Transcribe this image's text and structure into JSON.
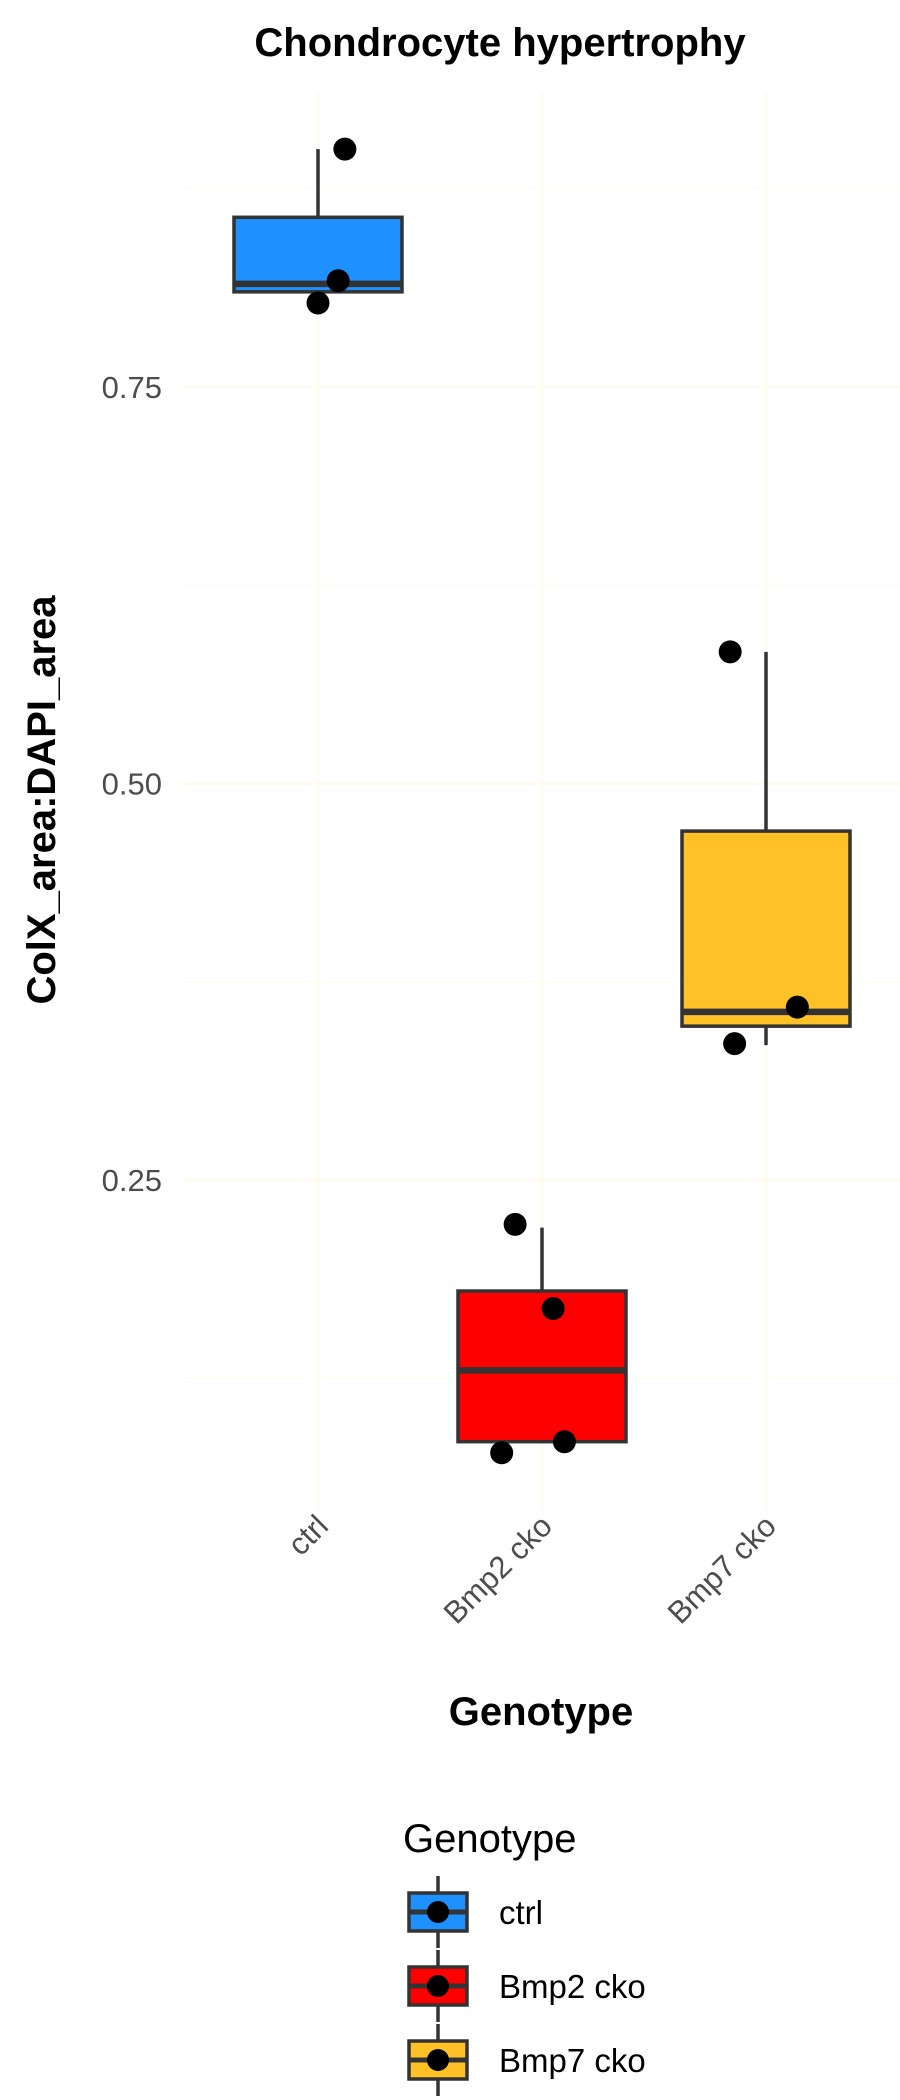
{
  "chart_data": {
    "type": "box",
    "title": "Chondrocyte hypertrophy",
    "xlabel": "Genotype",
    "ylabel": "ColX_area:DAPI_area",
    "ylim": [
      0.04,
      0.94
    ],
    "yticks": [
      0.25,
      0.5,
      0.75
    ],
    "ytick_labels": [
      "0.25",
      "0.50",
      "0.75"
    ],
    "grid": true,
    "categories": [
      "ctrl",
      "Bmp2 cko",
      "Bmp7 cko"
    ],
    "series": [
      {
        "category": "ctrl",
        "color": "#1E90FF",
        "min": 0.81,
        "q1": 0.81,
        "median": 0.815,
        "q3": 0.857,
        "max": 0.9,
        "points": [
          {
            "x_jitter": 0.12,
            "y": 0.9
          },
          {
            "x_jitter": 0.09,
            "y": 0.817
          },
          {
            "x_jitter": 0.0,
            "y": 0.803
          }
        ]
      },
      {
        "category": "Bmp2 cko",
        "color": "#FF0000",
        "min": 0.085,
        "q1": 0.085,
        "median": 0.13,
        "q3": 0.18,
        "max": 0.22,
        "points": [
          {
            "x_jitter": -0.12,
            "y": 0.222
          },
          {
            "x_jitter": 0.05,
            "y": 0.169
          },
          {
            "x_jitter": 0.1,
            "y": 0.085
          },
          {
            "x_jitter": -0.18,
            "y": 0.078
          }
        ]
      },
      {
        "category": "Bmp7 cko",
        "color": "#FFC125",
        "min": 0.335,
        "q1": 0.347,
        "median": 0.356,
        "q3": 0.47,
        "max": 0.583,
        "points": [
          {
            "x_jitter": -0.16,
            "y": 0.583
          },
          {
            "x_jitter": 0.14,
            "y": 0.359
          },
          {
            "x_jitter": -0.14,
            "y": 0.336
          }
        ]
      }
    ],
    "legend": {
      "title": "Genotype",
      "position": "bottom",
      "items": [
        {
          "label": "ctrl",
          "color": "#1E90FF"
        },
        {
          "label": "Bmp2 cko",
          "color": "#FF0000"
        },
        {
          "label": "Bmp7 cko",
          "color": "#FFC125"
        }
      ]
    }
  }
}
